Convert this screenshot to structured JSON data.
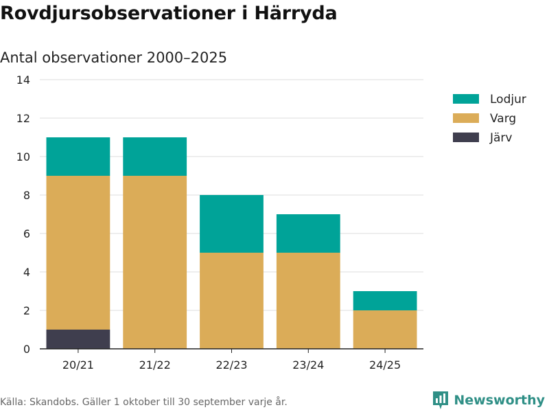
{
  "header": {
    "title": "Rovdjursobservationer i Härryda",
    "subtitle": "Antal observationer 2000–2025"
  },
  "footer": {
    "source": "Källa: Skandobs. Gäller 1 oktober till 30 september varje år.",
    "brand_name": "Newsworthy",
    "brand_icon": "bar-chart-logo-icon"
  },
  "colors": {
    "Lodjur": "#00a398",
    "Varg": "#dbac58",
    "Järv": "#3f3e4e",
    "grid": "#dddddd",
    "axis": "#222222",
    "brand": "#2f8f86"
  },
  "chart_data": {
    "type": "bar",
    "stacked": true,
    "categories": [
      "20/21",
      "21/22",
      "22/23",
      "23/24",
      "24/25"
    ],
    "series": [
      {
        "name": "Järv",
        "values": [
          1,
          0,
          0,
          0,
          0
        ]
      },
      {
        "name": "Varg",
        "values": [
          8,
          9,
          5,
          5,
          2
        ]
      },
      {
        "name": "Lodjur",
        "values": [
          2,
          2,
          3,
          2,
          1
        ]
      }
    ],
    "legend": [
      "Lodjur",
      "Varg",
      "Järv"
    ],
    "legend_position": "top-right",
    "ylim": [
      0,
      14
    ],
    "yticks": [
      0,
      2,
      4,
      6,
      8,
      10,
      12,
      14
    ],
    "grid": true,
    "xlabel": "",
    "ylabel": ""
  }
}
